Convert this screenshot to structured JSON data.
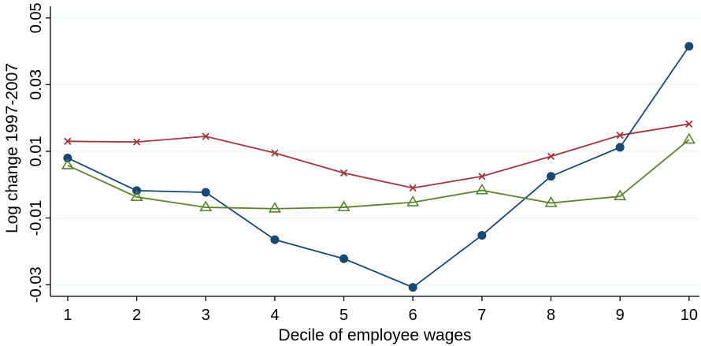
{
  "chart_data": {
    "type": "line",
    "title": "",
    "xlabel": "Decile of employee wages",
    "ylabel": "Log change 1997-2007",
    "x": [
      1,
      2,
      3,
      4,
      5,
      6,
      7,
      8,
      9,
      10
    ],
    "x_tick_labels": [
      "1",
      "2",
      "3",
      "4",
      "5",
      "6",
      "7",
      "8",
      "9",
      "10"
    ],
    "xlim": [
      0.75,
      10.15
    ],
    "ylim": [
      -0.0335,
      0.0535
    ],
    "y_ticks": [
      -0.03,
      -0.01,
      0.01,
      0.03,
      0.05
    ],
    "y_tick_labels": [
      "-0.03",
      "-0.01",
      "0.01",
      "0.03",
      "0.05"
    ],
    "grid": true,
    "legend": "none",
    "series": [
      {
        "color": "#a0373c",
        "marker": "x",
        "values": [
          0.013,
          0.0128,
          0.0145,
          0.0095,
          0.0035,
          -0.001,
          0.0025,
          0.0085,
          0.0148,
          0.0182
        ]
      },
      {
        "color": "#1a4674",
        "marker": "circle",
        "values": [
          0.008,
          -0.0018,
          -0.0023,
          -0.0165,
          -0.0222,
          -0.0308,
          -0.0152,
          0.0025,
          0.0112,
          0.0415
        ]
      },
      {
        "color": "#5a8232",
        "marker": "triangle",
        "values": [
          0.0058,
          -0.0037,
          -0.0068,
          -0.0072,
          -0.0068,
          -0.0053,
          -0.0017,
          -0.0055,
          -0.0035,
          0.0135
        ]
      }
    ]
  }
}
